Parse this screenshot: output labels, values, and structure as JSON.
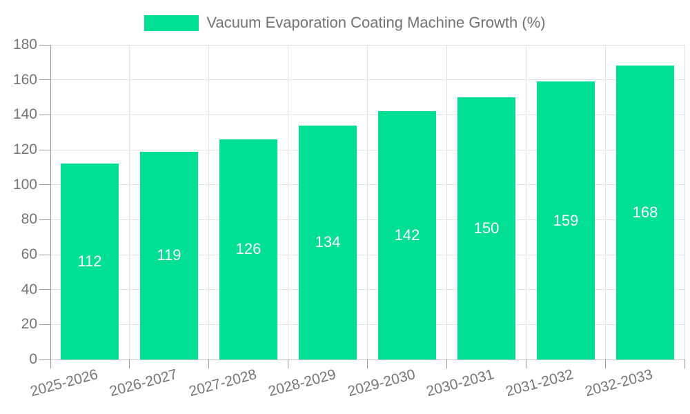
{
  "chart_data": {
    "type": "bar",
    "title": "Vacuum Evaporation Coating Machine Growth (%)",
    "categories": [
      "2025-2026",
      "2026-2027",
      "2027-2028",
      "2028-2029",
      "2029-2030",
      "2030-2031",
      "2031-2032",
      "2032-2033"
    ],
    "values": [
      112,
      119,
      126,
      134,
      142,
      150,
      159,
      168
    ],
    "xlabel": "",
    "ylabel": "",
    "ylim": [
      0,
      180
    ],
    "ytick_step": 20,
    "grid": true,
    "legend_position": "top",
    "colors": {
      "bar": "#00DF94",
      "grid": "#E3E3E3",
      "axis": "#999999",
      "baseline": "#C8C8C8",
      "tick_text": "#757575",
      "legend_text": "#737373",
      "bar_label": "#FFFFFF"
    }
  }
}
